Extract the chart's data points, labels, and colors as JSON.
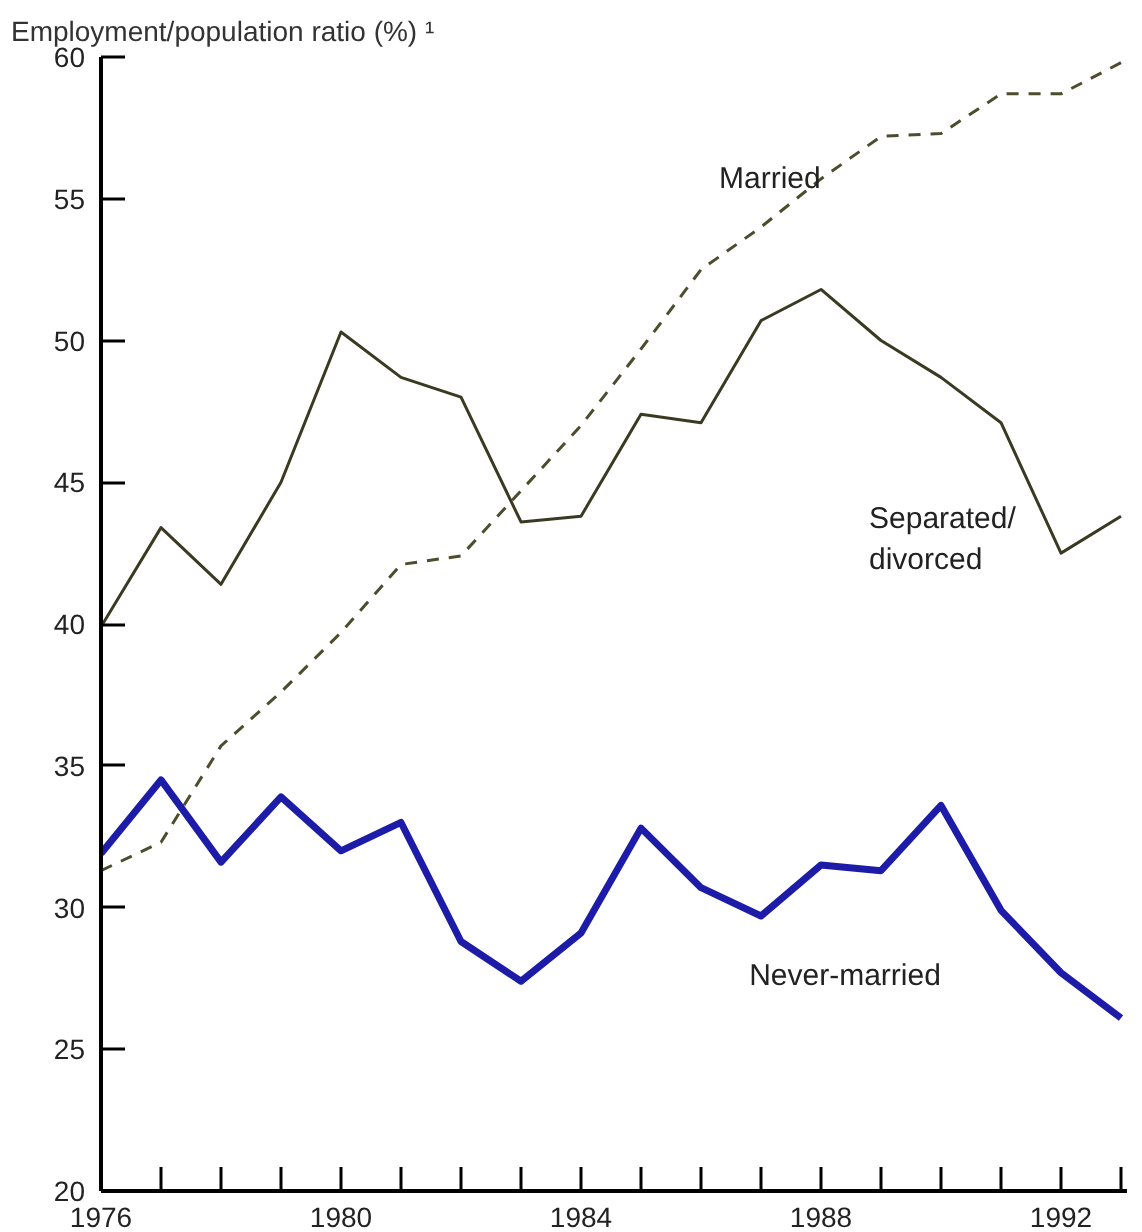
{
  "chart_data": {
    "type": "line",
    "ylabel": "Employment/population ratio (%) ¹",
    "x": [
      1976,
      1977,
      1978,
      1979,
      1980,
      1981,
      1982,
      1983,
      1984,
      1985,
      1986,
      1987,
      1988,
      1989,
      1990,
      1991,
      1992,
      1993
    ],
    "series": [
      {
        "name": "Married",
        "color": "#4d4d2e",
        "line_style": "dashed",
        "values": [
          31.3,
          32.3,
          35.7,
          37.6,
          39.7,
          42.1,
          42.4,
          44.7,
          47.0,
          49.7,
          52.5,
          54.0,
          55.7,
          57.2,
          57.3,
          58.7,
          58.7,
          59.8
        ]
      },
      {
        "name": "Separated/ divorced",
        "color": "#3a3a22",
        "line_style": "solid",
        "values": [
          39.9,
          43.4,
          41.4,
          45.0,
          50.3,
          48.7,
          48.0,
          43.6,
          43.8,
          47.4,
          47.1,
          50.7,
          51.8,
          50.0,
          48.7,
          47.1,
          42.5,
          43.8
        ]
      },
      {
        "name": "Never-married",
        "color": "#1c1ca8",
        "line_style": "solid",
        "values": [
          31.9,
          34.5,
          31.6,
          33.9,
          32.0,
          33.0,
          28.8,
          27.4,
          29.1,
          32.8,
          30.7,
          29.7,
          31.5,
          31.3,
          33.6,
          29.9,
          27.7,
          26.1
        ]
      }
    ],
    "xlim": [
      1976,
      1993.1
    ],
    "ylim": [
      20,
      60
    ],
    "xticks": [
      1976,
      {
        "value": 1977,
        "label": null
      },
      {
        "value": 1978,
        "label": null
      },
      {
        "value": 1979,
        "label": null
      },
      1980,
      {
        "value": 1981,
        "label": null
      },
      {
        "value": 1982,
        "label": null
      },
      {
        "value": 1983,
        "label": null
      },
      1984,
      {
        "value": 1985,
        "label": null
      },
      {
        "value": 1986,
        "label": null
      },
      {
        "value": 1987,
        "label": null
      },
      1988,
      {
        "value": 1989,
        "label": null
      },
      {
        "value": 1990,
        "label": null
      },
      {
        "value": 1991,
        "label": null
      },
      1992,
      {
        "value": 1993,
        "label": null
      }
    ],
    "yticks": [
      20,
      25,
      30,
      35,
      40,
      45,
      50,
      55,
      60
    ],
    "grid": false,
    "marker": "none"
  }
}
